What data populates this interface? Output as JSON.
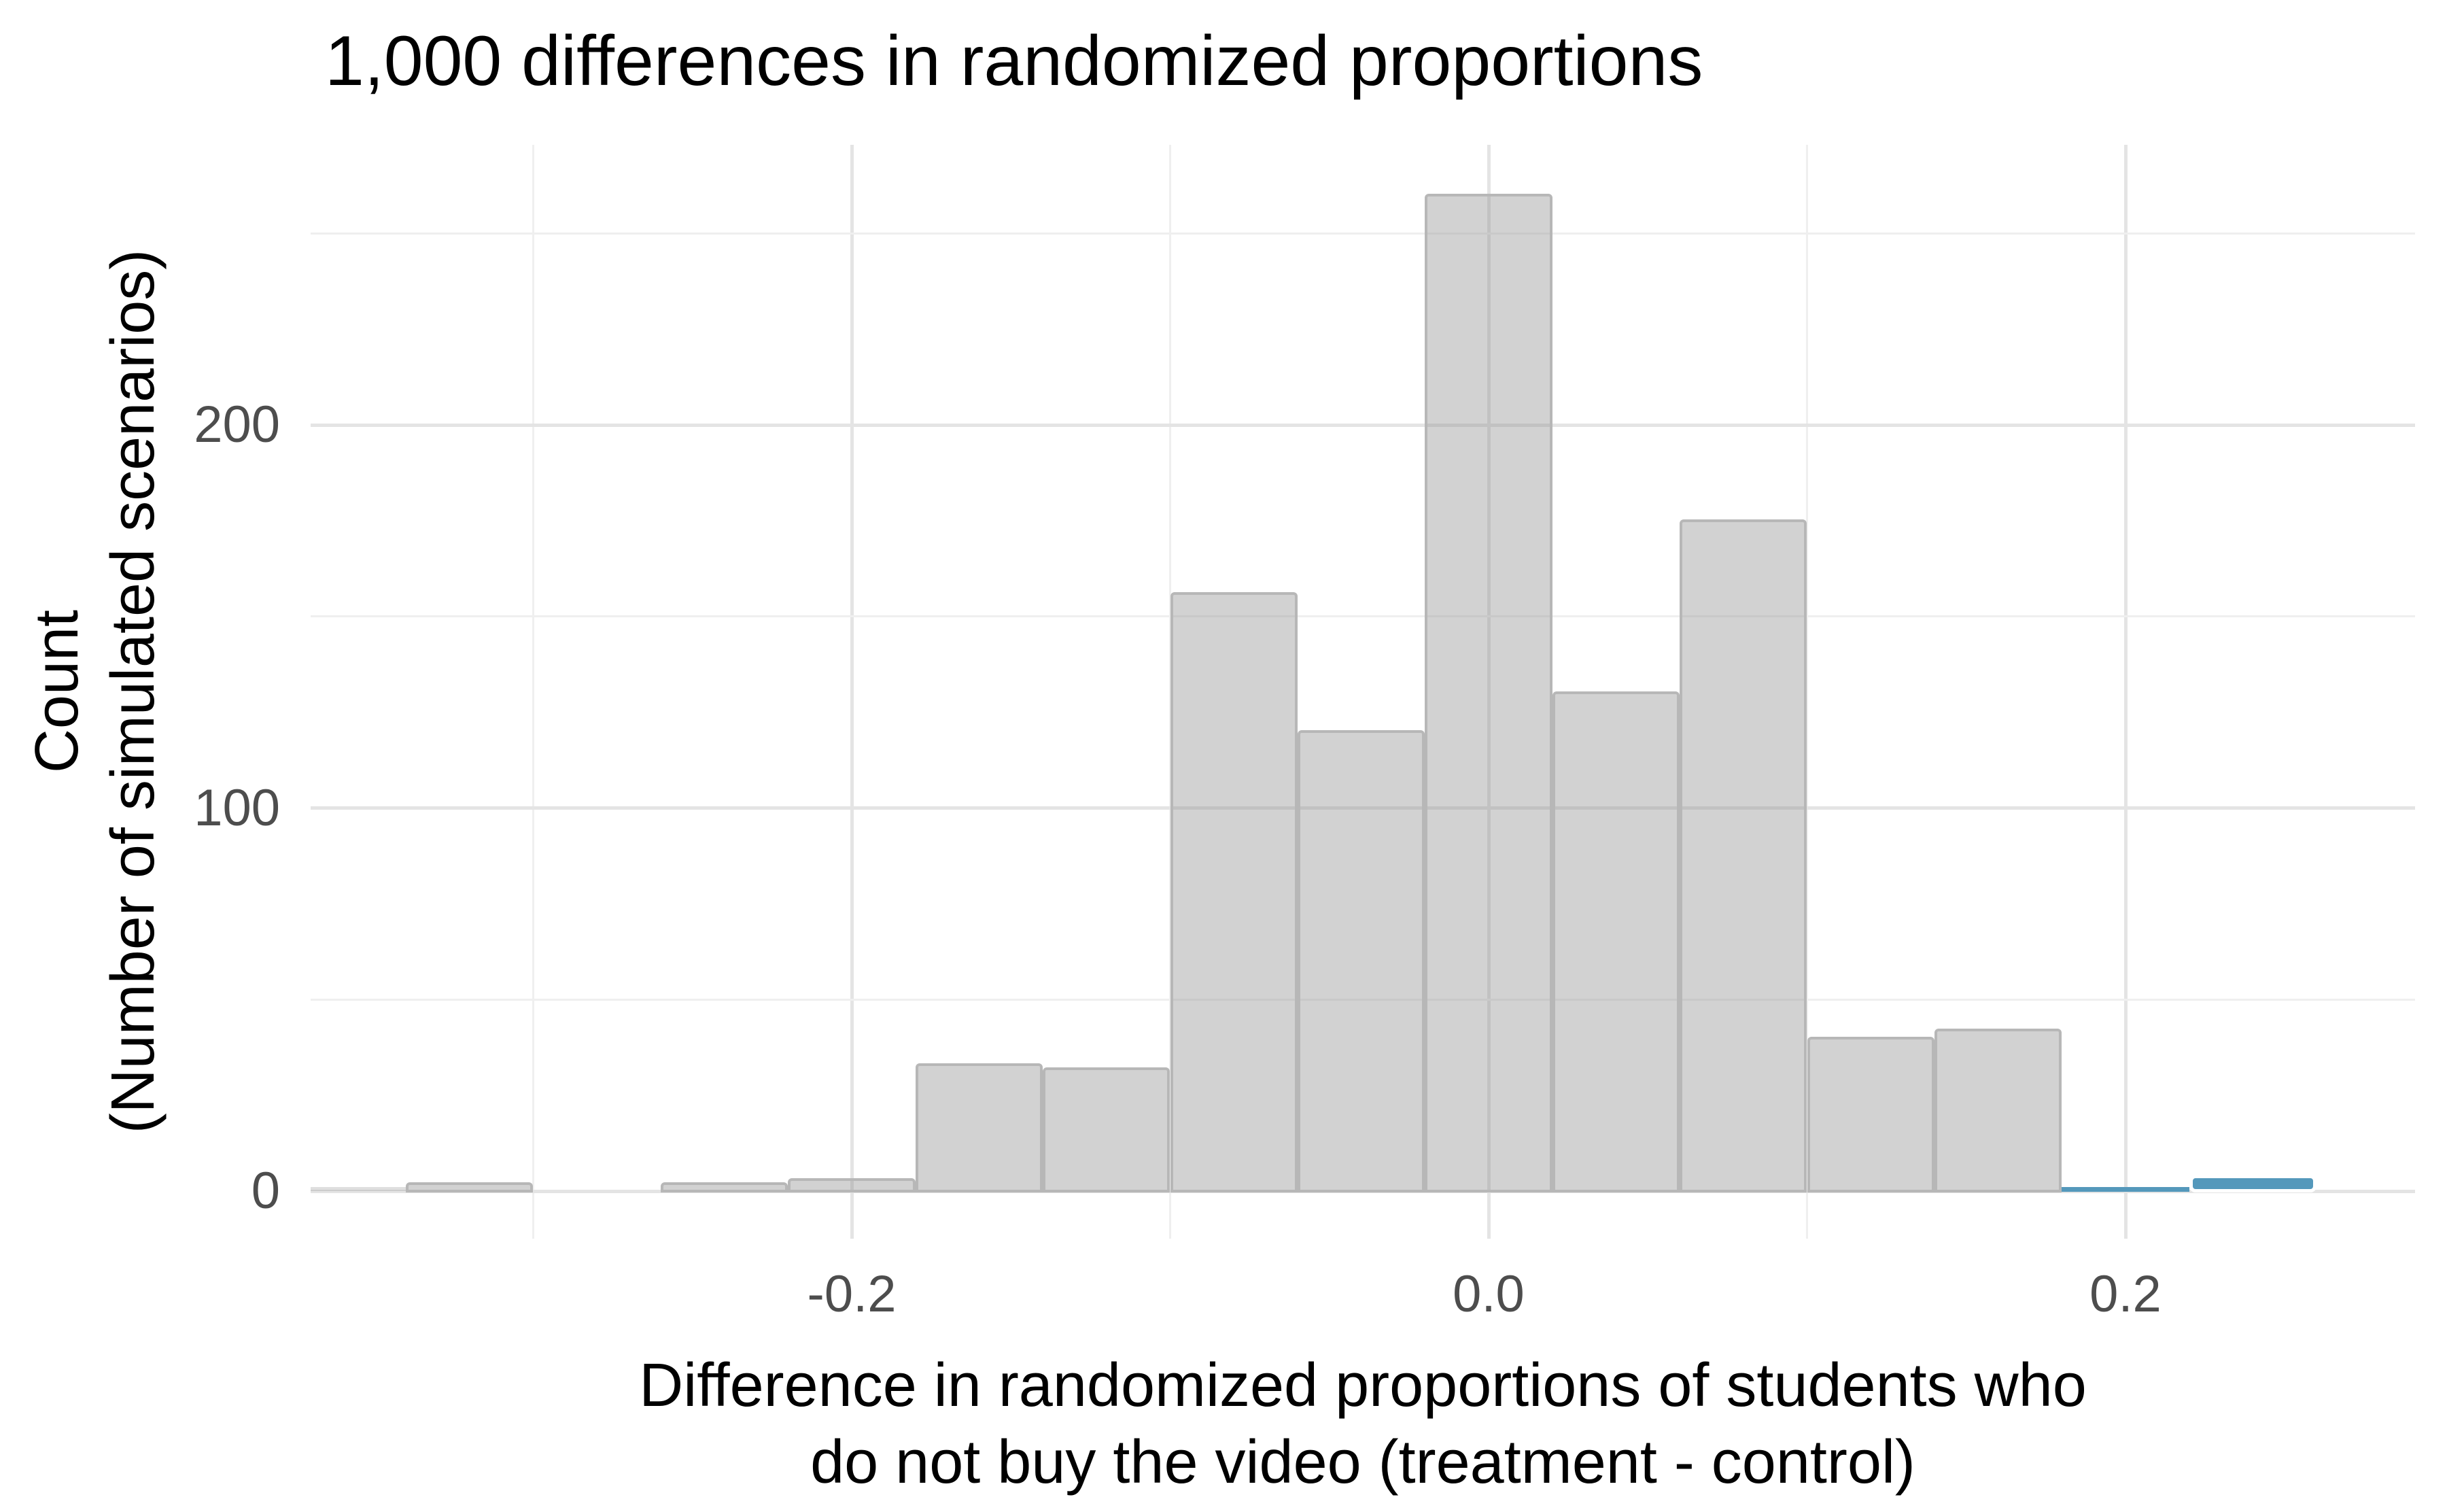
{
  "chart_data": {
    "type": "bar",
    "subtype": "histogram",
    "title": "1,000 differences in randomized proportions",
    "ylabel_lines": [
      "Count",
      "(Number of simulated scenarios)"
    ],
    "xlabel_lines": [
      "Difference in randomized proportions of students who",
      "do not buy the video (treatment - control)"
    ],
    "bin_width": 0.04,
    "bin_centers": [
      -0.36,
      -0.32,
      -0.28,
      -0.24,
      -0.2,
      -0.16,
      -0.12,
      -0.08,
      -0.04,
      0.0,
      0.04,
      0.08,
      0.12,
      0.16,
      0.2,
      0.24
    ],
    "counts": [
      1,
      2,
      0,
      2,
      3,
      33,
      32,
      156,
      120,
      260,
      130,
      175,
      40,
      42,
      1,
      3
    ],
    "bar_styles": [
      "plain-gray",
      "gray",
      "gray",
      "gray",
      "gray",
      "gray",
      "gray",
      "gray",
      "gray",
      "gray",
      "gray",
      "gray",
      "gray",
      "gray",
      "thin-blue",
      "blue"
    ],
    "x_ticks": {
      "values": [
        -0.2,
        0.0,
        0.2
      ],
      "labels": [
        "-0.2",
        "0.0",
        "0.2"
      ]
    },
    "x_minor_gridlines": [
      -0.3,
      -0.1,
      0.1
    ],
    "y_ticks": {
      "values": [
        0,
        100,
        200
      ],
      "labels": [
        "0",
        "100",
        "200"
      ]
    },
    "y_minor_gridlines": [
      50,
      150,
      250
    ],
    "xlim": [
      -0.37,
      0.291
    ],
    "ylim": [
      0,
      273
    ],
    "grid": true,
    "legend": false,
    "colors": {
      "bar_fill": "#d5d5d5",
      "bar_border": "#b7b7b7",
      "highlight_fill": "#5498bb",
      "highlight_stroke": "#ffffff",
      "major_grid": "#e4e4e4",
      "minor_grid": "#efefef",
      "tick_label": "#4d4d4d",
      "text": "#000000",
      "background": "#ffffff"
    }
  }
}
